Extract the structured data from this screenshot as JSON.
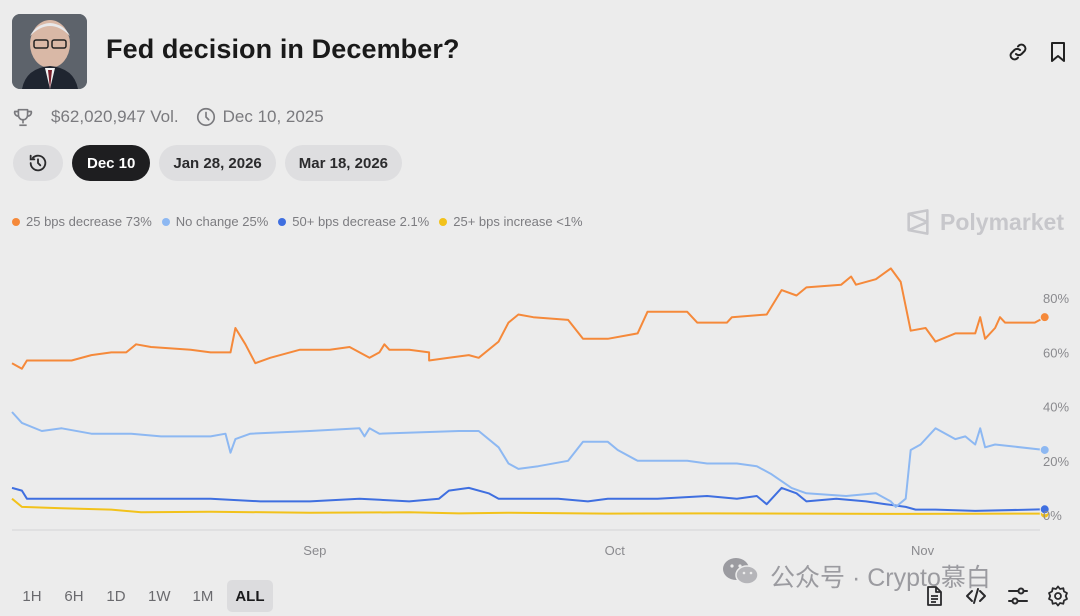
{
  "header": {
    "title": "Fed decision in December?",
    "volume": "$62,020,947 Vol.",
    "end_date": "Dec 10, 2025"
  },
  "tabs": [
    {
      "label": "Dec 10",
      "active": true
    },
    {
      "label": "Jan 28, 2026",
      "active": false
    },
    {
      "label": "Mar 18, 2026",
      "active": false
    }
  ],
  "legend": [
    {
      "label": "25 bps decrease 73%",
      "color": "#f5893a"
    },
    {
      "label": "No change 25%",
      "color": "#8db8f2"
    },
    {
      "label": "50+ bps decrease 2.1%",
      "color": "#3f6fe0"
    },
    {
      "label": "25+ bps increase <1%",
      "color": "#f2c21b"
    }
  ],
  "brand": "Polymarket",
  "ranges": [
    {
      "label": "1H",
      "active": false
    },
    {
      "label": "6H",
      "active": false
    },
    {
      "label": "1D",
      "active": false
    },
    {
      "label": "1W",
      "active": false
    },
    {
      "label": "1M",
      "active": false
    },
    {
      "label": "ALL",
      "active": true
    }
  ],
  "watermark": "公众号 · Crypto慕白",
  "chart_data": {
    "type": "line",
    "x_ticks": [
      {
        "label": "Sep",
        "t": 0.305
      },
      {
        "label": "Oct",
        "t": 0.607
      },
      {
        "label": "Nov",
        "t": 0.917
      }
    ],
    "y_ticks": [
      {
        "label": "80%",
        "v": 80
      },
      {
        "label": "60%",
        "v": 60
      },
      {
        "label": "40%",
        "v": 40
      },
      {
        "label": "20%",
        "v": 20
      },
      {
        "label": "0%",
        "v": 0
      }
    ],
    "ylim": [
      0,
      100
    ],
    "series": [
      {
        "name": "25 bps decrease",
        "color": "#f5893a",
        "points": [
          [
            0,
            56
          ],
          [
            0.01,
            54
          ],
          [
            0.015,
            57
          ],
          [
            0.06,
            57
          ],
          [
            0.08,
            59
          ],
          [
            0.1,
            60
          ],
          [
            0.115,
            60
          ],
          [
            0.125,
            63
          ],
          [
            0.14,
            62
          ],
          [
            0.18,
            61
          ],
          [
            0.2,
            60
          ],
          [
            0.22,
            60
          ],
          [
            0.225,
            69
          ],
          [
            0.235,
            63
          ],
          [
            0.245,
            56
          ],
          [
            0.26,
            58
          ],
          [
            0.29,
            61
          ],
          [
            0.32,
            61
          ],
          [
            0.34,
            62
          ],
          [
            0.36,
            58
          ],
          [
            0.37,
            60
          ],
          [
            0.375,
            63
          ],
          [
            0.38,
            61
          ],
          [
            0.4,
            61
          ],
          [
            0.42,
            60
          ],
          [
            0.42,
            57
          ],
          [
            0.44,
            58
          ],
          [
            0.46,
            59
          ],
          [
            0.47,
            58
          ],
          [
            0.49,
            64
          ],
          [
            0.5,
            71
          ],
          [
            0.51,
            74
          ],
          [
            0.525,
            73
          ],
          [
            0.56,
            72
          ],
          [
            0.575,
            65
          ],
          [
            0.6,
            65
          ],
          [
            0.63,
            67
          ],
          [
            0.64,
            75
          ],
          [
            0.68,
            75
          ],
          [
            0.69,
            71
          ],
          [
            0.72,
            71
          ],
          [
            0.725,
            73
          ],
          [
            0.76,
            74
          ],
          [
            0.775,
            83
          ],
          [
            0.79,
            81
          ],
          [
            0.8,
            84
          ],
          [
            0.835,
            85
          ],
          [
            0.845,
            88
          ],
          [
            0.85,
            85
          ],
          [
            0.87,
            87
          ],
          [
            0.885,
            91
          ],
          [
            0.895,
            86
          ],
          [
            0.905,
            68
          ],
          [
            0.92,
            69
          ],
          [
            0.93,
            64
          ],
          [
            0.95,
            67
          ],
          [
            0.97,
            67
          ],
          [
            0.975,
            73
          ],
          [
            0.98,
            65
          ],
          [
            0.99,
            69
          ],
          [
            0.995,
            73
          ],
          [
            1,
            71
          ],
          [
            1.03,
            71
          ],
          [
            1.04,
            73
          ]
        ]
      },
      {
        "name": "No change",
        "color": "#8db8f2",
        "points": [
          [
            0,
            38
          ],
          [
            0.01,
            34
          ],
          [
            0.03,
            31
          ],
          [
            0.05,
            32
          ],
          [
            0.08,
            30
          ],
          [
            0.12,
            30
          ],
          [
            0.15,
            29
          ],
          [
            0.2,
            29
          ],
          [
            0.215,
            30
          ],
          [
            0.22,
            23
          ],
          [
            0.225,
            28
          ],
          [
            0.24,
            30
          ],
          [
            0.3,
            31
          ],
          [
            0.35,
            32
          ],
          [
            0.355,
            29
          ],
          [
            0.36,
            32
          ],
          [
            0.37,
            30
          ],
          [
            0.45,
            31
          ],
          [
            0.47,
            31
          ],
          [
            0.49,
            25
          ],
          [
            0.5,
            19
          ],
          [
            0.51,
            17
          ],
          [
            0.53,
            18
          ],
          [
            0.56,
            20
          ],
          [
            0.575,
            27
          ],
          [
            0.6,
            27
          ],
          [
            0.61,
            24
          ],
          [
            0.63,
            20
          ],
          [
            0.68,
            20
          ],
          [
            0.7,
            19
          ],
          [
            0.73,
            19
          ],
          [
            0.75,
            18
          ],
          [
            0.765,
            15
          ],
          [
            0.785,
            10
          ],
          [
            0.8,
            8
          ],
          [
            0.84,
            7
          ],
          [
            0.87,
            8
          ],
          [
            0.885,
            5
          ],
          [
            0.89,
            3
          ],
          [
            0.9,
            6
          ],
          [
            0.905,
            24
          ],
          [
            0.915,
            26
          ],
          [
            0.93,
            32
          ],
          [
            0.95,
            28
          ],
          [
            0.96,
            29
          ],
          [
            0.97,
            26
          ],
          [
            0.975,
            32
          ],
          [
            0.98,
            25
          ],
          [
            0.99,
            26
          ],
          [
            1.04,
            24
          ]
        ]
      },
      {
        "name": "50+ bps decrease",
        "color": "#3f6fe0",
        "points": [
          [
            0,
            10
          ],
          [
            0.01,
            9
          ],
          [
            0.015,
            6
          ],
          [
            0.06,
            6
          ],
          [
            0.1,
            6
          ],
          [
            0.2,
            6
          ],
          [
            0.25,
            5
          ],
          [
            0.3,
            5
          ],
          [
            0.35,
            6
          ],
          [
            0.4,
            5
          ],
          [
            0.43,
            6
          ],
          [
            0.44,
            9
          ],
          [
            0.46,
            10
          ],
          [
            0.48,
            8
          ],
          [
            0.49,
            6
          ],
          [
            0.55,
            6
          ],
          [
            0.58,
            5
          ],
          [
            0.6,
            6
          ],
          [
            0.65,
            6
          ],
          [
            0.7,
            7
          ],
          [
            0.73,
            6
          ],
          [
            0.75,
            7
          ],
          [
            0.76,
            4
          ],
          [
            0.775,
            10
          ],
          [
            0.79,
            8
          ],
          [
            0.8,
            5
          ],
          [
            0.83,
            6
          ],
          [
            0.86,
            5
          ],
          [
            0.88,
            4
          ],
          [
            0.9,
            3
          ],
          [
            0.91,
            2
          ],
          [
            0.93,
            2
          ],
          [
            0.97,
            1.5
          ],
          [
            1.04,
            2.1
          ]
        ]
      },
      {
        "name": "25+ bps increase",
        "color": "#f2c21b",
        "points": [
          [
            0,
            6
          ],
          [
            0.01,
            3
          ],
          [
            0.05,
            2.5
          ],
          [
            0.1,
            2
          ],
          [
            0.13,
            1
          ],
          [
            0.2,
            1.2
          ],
          [
            0.3,
            0.8
          ],
          [
            0.4,
            1
          ],
          [
            0.45,
            0.6
          ],
          [
            0.5,
            0.8
          ],
          [
            0.6,
            0.5
          ],
          [
            0.7,
            0.6
          ],
          [
            0.8,
            0.5
          ],
          [
            0.9,
            0.4
          ],
          [
            1.04,
            0.5
          ]
        ]
      }
    ]
  }
}
